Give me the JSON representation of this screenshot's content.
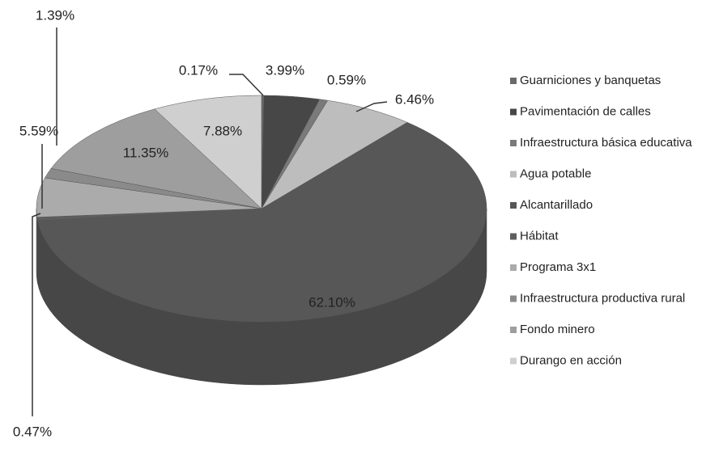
{
  "chart_data": {
    "type": "pie3d",
    "categories": [
      "Guarniciones y banquetas",
      "Pavimentación de calles",
      "Infraestructura básica educativa",
      "Agua potable",
      "Alcantarillado",
      "Hábitat",
      "Programa 3x1",
      "Infraestructura productiva rural",
      "Fondo minero",
      "Durango en acción"
    ],
    "values": [
      0.17,
      3.99,
      0.59,
      6.46,
      62.1,
      0.47,
      5.59,
      1.39,
      11.35,
      7.88
    ],
    "value_labels": [
      "0.17%",
      "3.99%",
      "0.59%",
      "6.46%",
      "62.10%",
      "0.47%",
      "5.59%",
      "1.39%",
      "11.35%",
      "7.88%"
    ],
    "colors": [
      "#6a6a6a",
      "#474747",
      "#7a7a7a",
      "#bdbdbd",
      "#575757",
      "#5e5e5e",
      "#ababab",
      "#8a8a8a",
      "#9e9e9e",
      "#cfcfcf"
    ],
    "legend": "right"
  }
}
